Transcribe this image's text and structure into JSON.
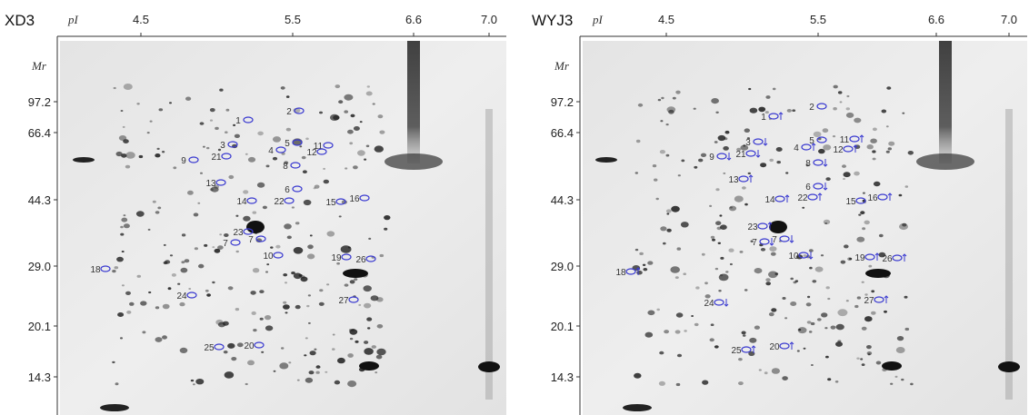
{
  "panels": [
    {
      "title": "XD3",
      "pi_label": "pI",
      "pi_ticks": [
        "4.5",
        "5.5",
        "6.6",
        "7.0"
      ],
      "mr_label": "Mr",
      "mr_ticks": [
        "97.2",
        "66.4",
        "44.3",
        "29.0",
        "20.1",
        "14.3"
      ],
      "spots": [
        "1",
        "2",
        "3",
        "4",
        "5",
        "11",
        "12",
        "21",
        "9",
        "8",
        "13",
        "6",
        "22",
        "14",
        "15",
        "16",
        "23",
        "7",
        "7",
        "10",
        "19",
        "26",
        "18",
        "24",
        "27",
        "25",
        "20"
      ]
    },
    {
      "title": "WYJ3",
      "pi_label": "pI",
      "pi_ticks": [
        "4.5",
        "5.5",
        "6.6",
        "7.0"
      ],
      "mr_label": "Mr",
      "mr_ticks": [
        "97.2",
        "66.4",
        "44.3",
        "29.0",
        "20.1",
        "14.3"
      ],
      "spots": [
        "1",
        "2",
        "3",
        "4",
        "5",
        "11",
        "12",
        "21",
        "9",
        "8",
        "13",
        "6",
        "22",
        "14",
        "15",
        "16",
        "23",
        "7",
        "7",
        "10",
        "19",
        "26",
        "18",
        "24",
        "27",
        "25",
        "20"
      ]
    }
  ]
}
